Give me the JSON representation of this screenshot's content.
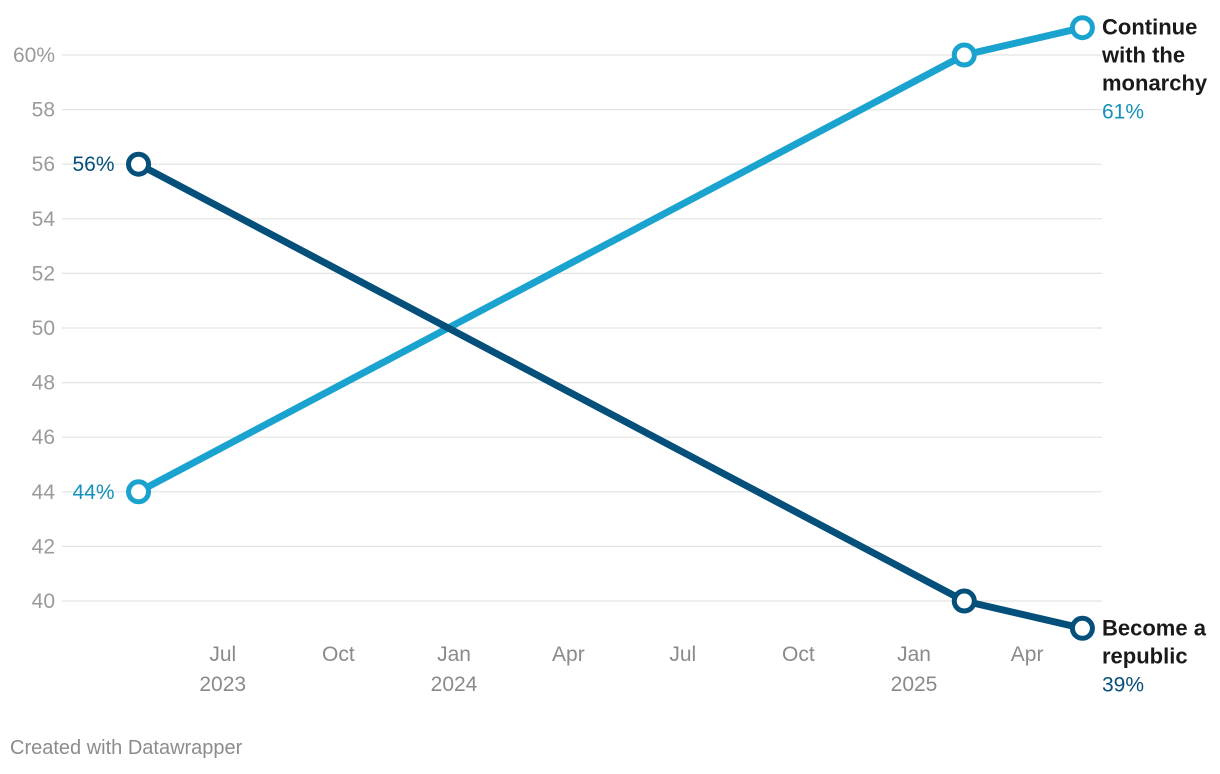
{
  "chart_data": {
    "type": "line",
    "y_ticks": [
      "60%",
      "58",
      "56",
      "54",
      "52",
      "50",
      "48",
      "46",
      "44",
      "42",
      "40"
    ],
    "y_tick_values": [
      60,
      58,
      56,
      54,
      52,
      50,
      48,
      46,
      44,
      42,
      40
    ],
    "ylim": [
      39,
      61
    ],
    "x_ticks": [
      {
        "label": "Jul",
        "year": "2023",
        "date": "2023-07-01"
      },
      {
        "label": "Oct",
        "year": "",
        "date": "2023-10-01"
      },
      {
        "label": "Jan",
        "year": "2024",
        "date": "2024-01-01"
      },
      {
        "label": "Apr",
        "year": "",
        "date": "2024-04-01"
      },
      {
        "label": "Jul",
        "year": "",
        "date": "2024-07-01"
      },
      {
        "label": "Oct",
        "year": "",
        "date": "2024-10-01"
      },
      {
        "label": "Jan",
        "year": "2025",
        "date": "2025-01-01"
      },
      {
        "label": "Apr",
        "year": "",
        "date": "2025-04-01"
      }
    ],
    "grid": true,
    "series": [
      {
        "name_lines": [
          "Continue",
          "with the",
          "monarchy"
        ],
        "color": "#1aa3cf",
        "label_color": "#1391bd",
        "start_label": "44%",
        "end_label": "61%",
        "points": [
          {
            "x": "2023-04-25",
            "y": 44
          },
          {
            "x": "2025-02-10",
            "y": 60
          },
          {
            "x": "2025-05-15",
            "y": 61
          }
        ]
      },
      {
        "name_lines": [
          "Become a",
          "republic"
        ],
        "color": "#05507a",
        "label_color": "#05507a",
        "start_label": "56%",
        "end_label": "39%",
        "points": [
          {
            "x": "2023-04-25",
            "y": 56
          },
          {
            "x": "2025-02-10",
            "y": 40
          },
          {
            "x": "2025-05-15",
            "y": 39
          }
        ]
      }
    ]
  },
  "footer": {
    "credit": "Created with Datawrapper"
  }
}
